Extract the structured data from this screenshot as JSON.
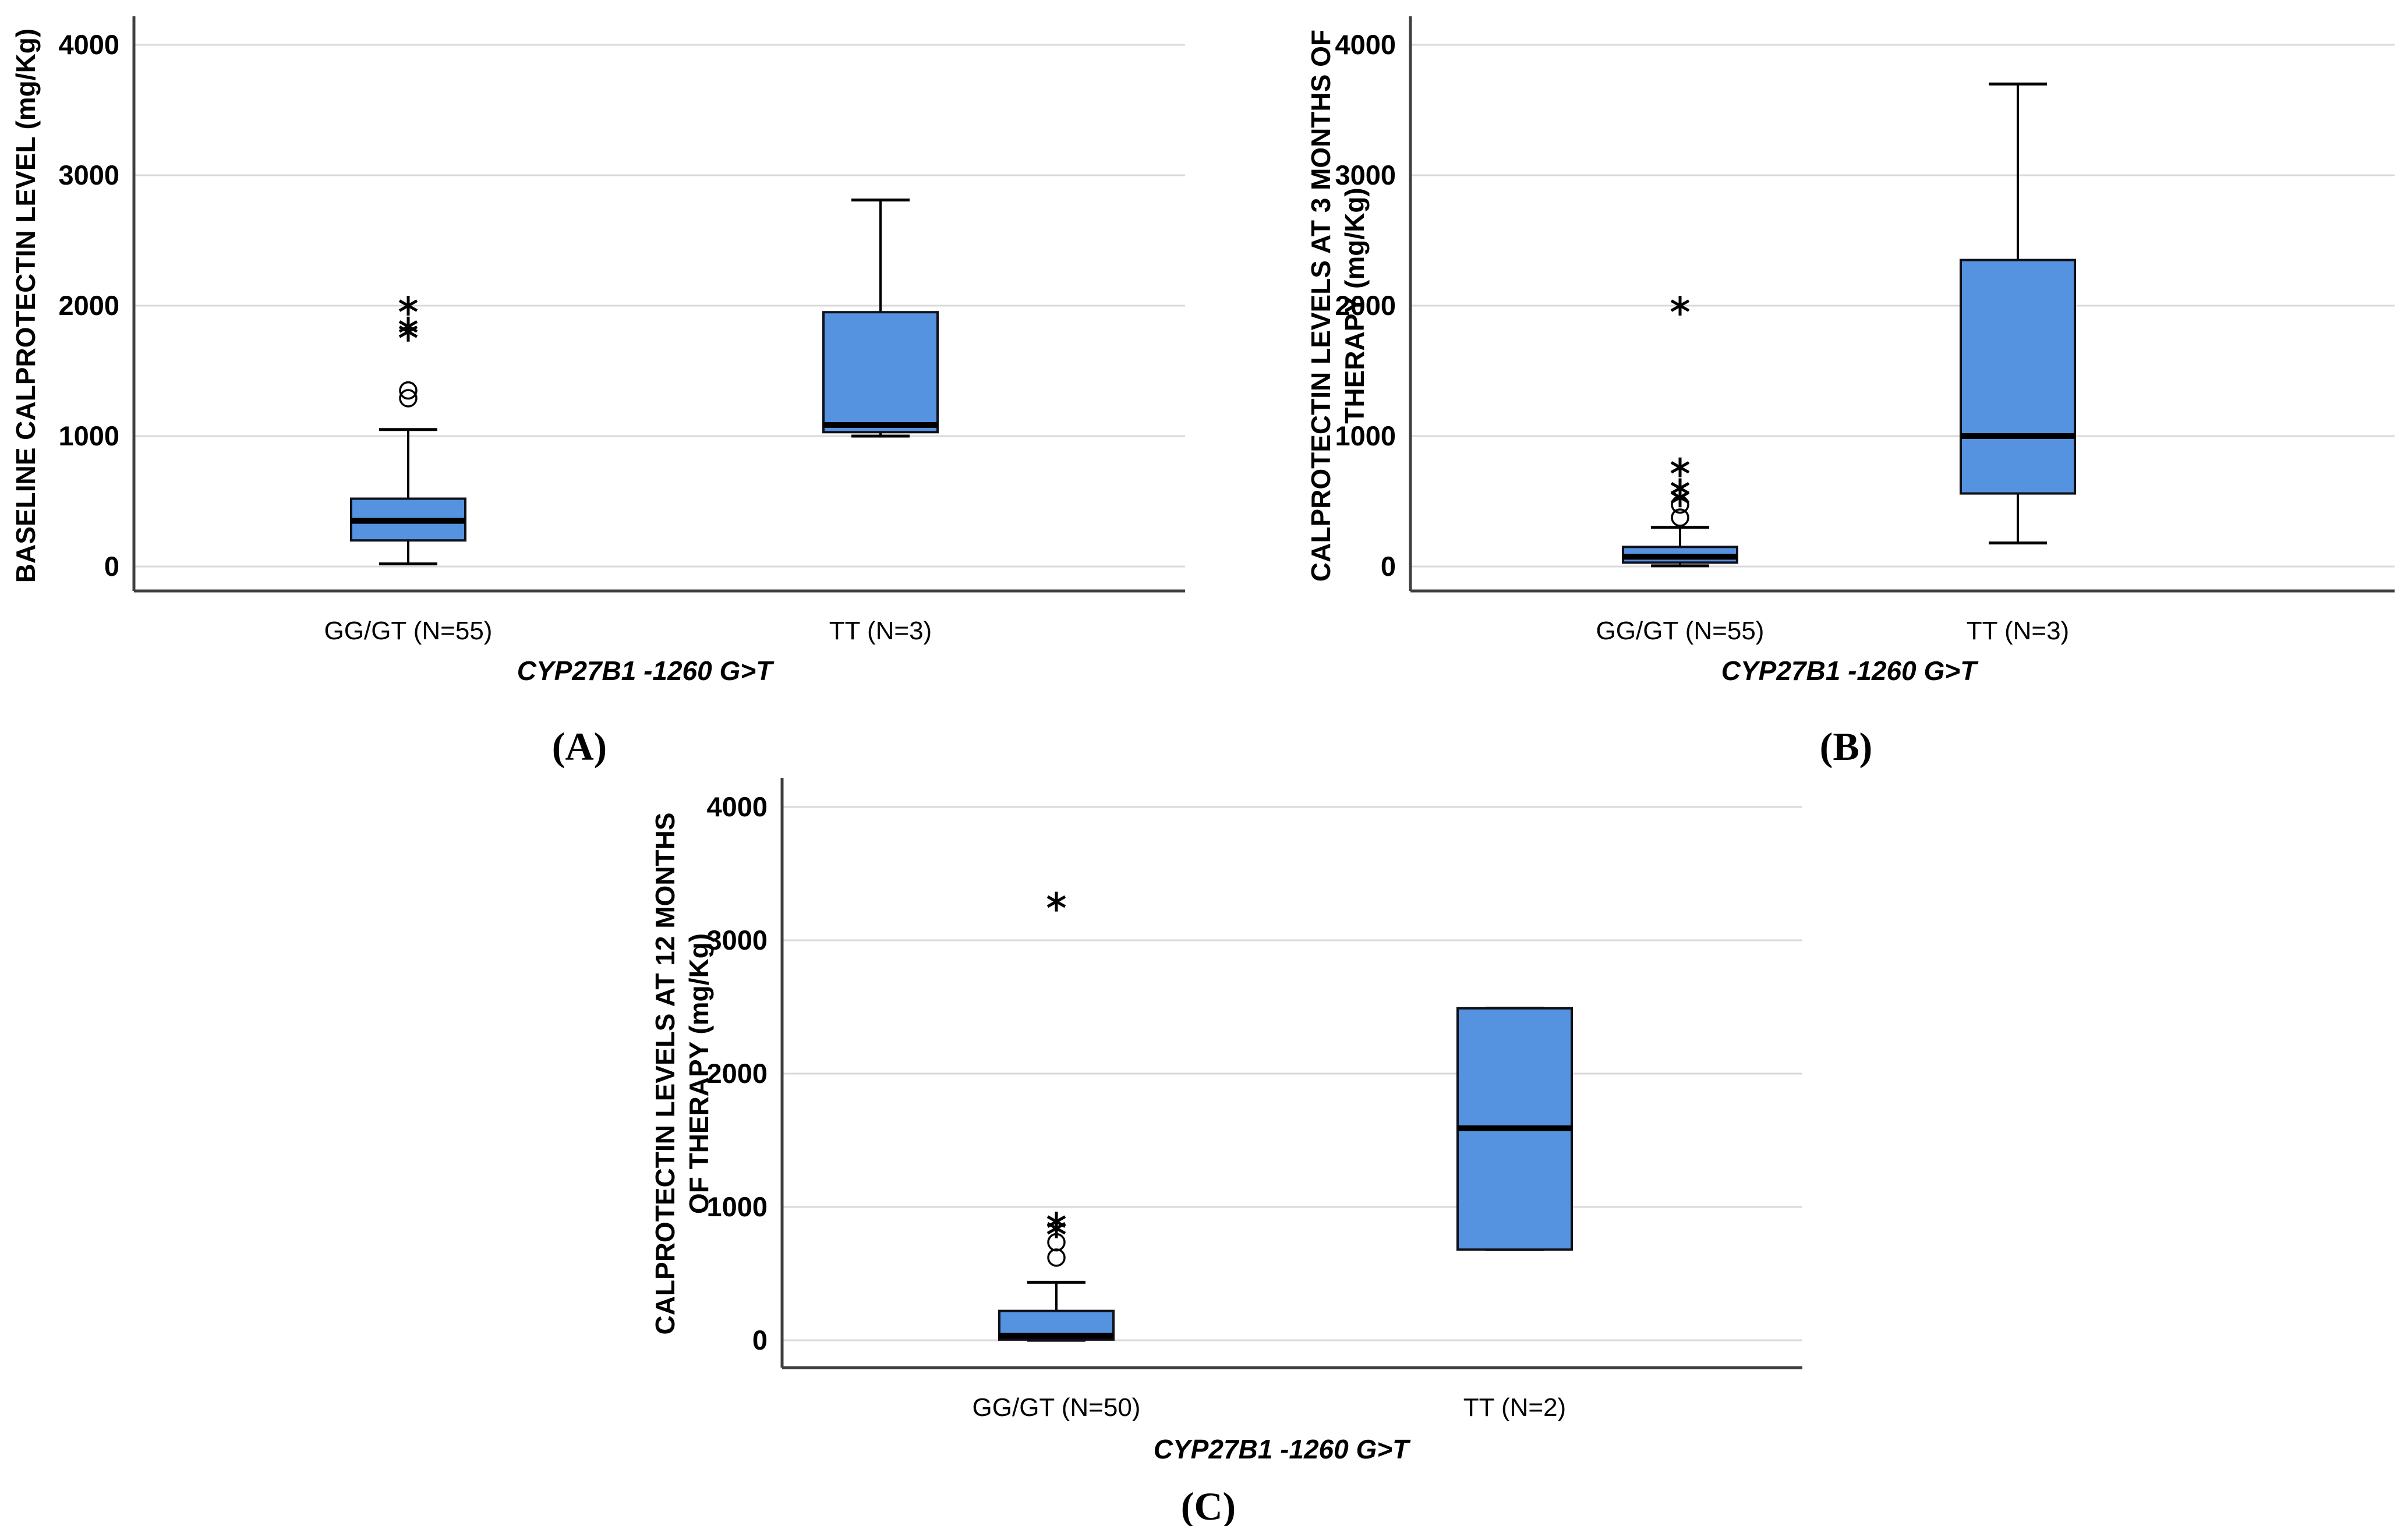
{
  "colors": {
    "box_fill": "#5592E0",
    "box_border": "#101018",
    "gridline": "#D9D9D9",
    "axis_line": "#3F3F3F"
  },
  "chart_data": [
    {
      "id": "A",
      "type": "boxplot",
      "caption": "(A)",
      "ylabel_lines": [
        "BASELINE CALPROTECTIN LEVEL (mg/Kg)"
      ],
      "xlabel": "CYP27B1 -1260 G>T",
      "ylim": [
        0,
        4000
      ],
      "yticks": [
        0,
        1000,
        2000,
        3000,
        4000
      ],
      "categories": [
        "GG/GT (N=55)",
        "TT (N=3)"
      ],
      "boxes": [
        {
          "category": "GG/GT (N=55)",
          "whisker_low": 20,
          "q1": 200,
          "median": 350,
          "q3": 520,
          "whisker_high": 1050,
          "outliers_circle": [
            1290,
            1350
          ],
          "outliers_star": [
            1800,
            1840,
            2000
          ]
        },
        {
          "category": "TT (N=3)",
          "whisker_low": 1000,
          "q1": 1030,
          "median": 1085,
          "q3": 1950,
          "whisker_high": 2810,
          "outliers_circle": [],
          "outliers_star": []
        }
      ]
    },
    {
      "id": "B",
      "type": "boxplot",
      "caption": "(B)",
      "ylabel_lines": [
        "CALPROTECTIN LEVELS AT 3 MONTHS OF",
        "THERAPY (mg/Kg)"
      ],
      "xlabel": "CYP27B1 -1260 G>T",
      "ylim": [
        0,
        4000
      ],
      "yticks": [
        0,
        1000,
        2000,
        3000,
        4000
      ],
      "categories": [
        "GG/GT (N=55)",
        "TT (N=3)"
      ],
      "boxes": [
        {
          "category": "GG/GT (N=55)",
          "whisker_low": 5,
          "q1": 30,
          "median": 75,
          "q3": 150,
          "whisker_high": 300,
          "outliers_circle": [
            375,
            475
          ],
          "outliers_star": [
            530,
            600,
            760,
            2000
          ]
        },
        {
          "category": "TT (N=3)",
          "whisker_low": 180,
          "q1": 560,
          "median": 1000,
          "q3": 2350,
          "whisker_high": 3700,
          "outliers_circle": [],
          "outliers_star": []
        }
      ]
    },
    {
      "id": "C",
      "type": "boxplot",
      "caption": "(C)",
      "ylabel_lines": [
        "CALPROTECTIN LEVELS AT 12 MONTHS",
        "OF THERAPY (mg/Kg)"
      ],
      "xlabel": "CYP27B1 -1260 G>T",
      "ylim": [
        0,
        4000
      ],
      "yticks": [
        0,
        1000,
        2000,
        3000,
        4000
      ],
      "categories": [
        "GG/GT (N=50)",
        "TT (N=2)"
      ],
      "boxes": [
        {
          "category": "GG/GT (N=50)",
          "whisker_low": 0,
          "q1": 5,
          "median": 35,
          "q3": 220,
          "whisker_high": 435,
          "outliers_circle": [
            620,
            735
          ],
          "outliers_star": [
            840,
            890,
            3290
          ]
        },
        {
          "category": "TT (N=2)",
          "whisker_low": 680,
          "q1": 680,
          "median": 1590,
          "q3": 2490,
          "whisker_high": 2490,
          "outliers_circle": [],
          "outliers_star": []
        }
      ]
    }
  ]
}
